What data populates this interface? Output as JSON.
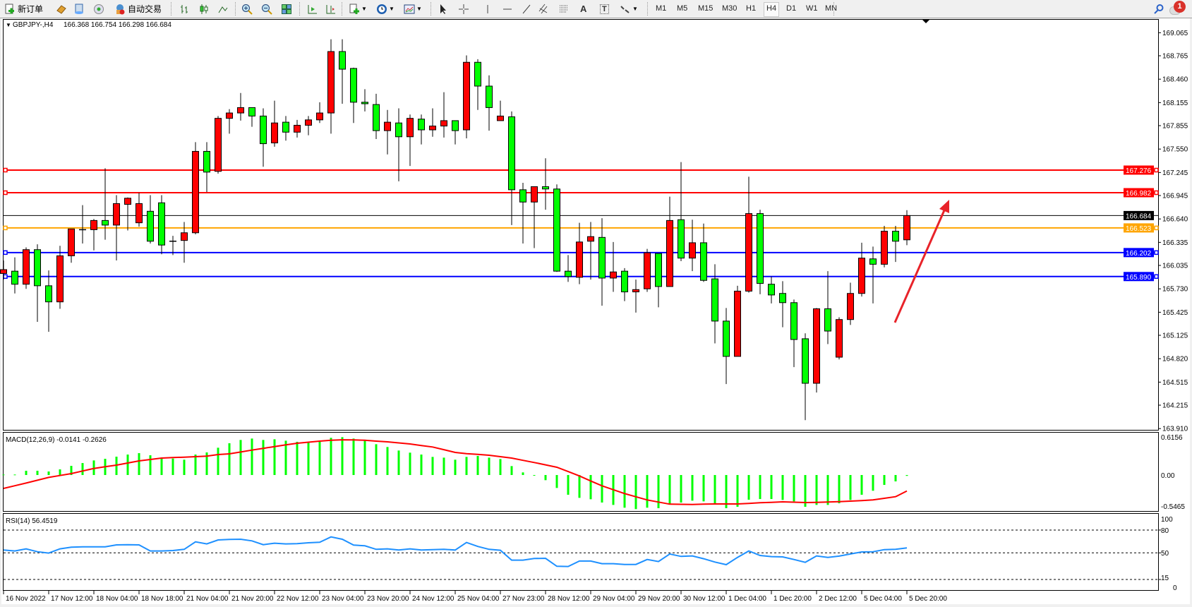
{
  "toolbar": {
    "new_order_label": "新订单",
    "auto_trading_label": "自动交易",
    "text_tool_glyph": "A",
    "label_tool_glyph": "T",
    "timeframes": [
      "M1",
      "M5",
      "M15",
      "M30",
      "H1",
      "H4",
      "D1",
      "W1",
      "MN"
    ],
    "active_timeframe": "H4",
    "notification_count": "1"
  },
  "chart": {
    "symbol": "GBPJPY-,H4",
    "ohlc_text": "166.368 166.754 166.298 166.684",
    "up_color": "#ff0000",
    "down_color": "#00ff00",
    "bid": {
      "value": 166.684,
      "label": "166.684",
      "color": "#000000"
    },
    "levels": [
      {
        "value": 167.276,
        "label": "167.276",
        "color": "#ff0000"
      },
      {
        "value": 166.982,
        "label": "166.982",
        "color": "#ff0000"
      },
      {
        "value": 166.523,
        "label": "166.523",
        "color": "#ffa500"
      },
      {
        "value": 166.202,
        "label": "166.202",
        "color": "#0000ff"
      },
      {
        "value": 165.89,
        "label": "165.890",
        "color": "#0000ff"
      }
    ],
    "price_ticks": [
      "169.065",
      "168.765",
      "168.460",
      "168.155",
      "167.855",
      "167.550",
      "167.245",
      "166.945",
      "166.640",
      "166.335",
      "166.035",
      "165.730",
      "165.425",
      "165.125",
      "164.820",
      "164.515",
      "164.215",
      "163.910"
    ],
    "time_labels": [
      "16 Nov 2022",
      "17 Nov 12:00",
      "18 Nov 04:00",
      "18 Nov 18:00",
      "21 Nov 04:00",
      "21 Nov 20:00",
      "22 Nov 12:00",
      "23 Nov 04:00",
      "23 Nov 20:00",
      "24 Nov 12:00",
      "25 Nov 04:00",
      "27 Nov 23:00",
      "28 Nov 12:00",
      "29 Nov 04:00",
      "29 Nov 20:00",
      "30 Nov 12:00",
      "1 Dec 04:00",
      "1 Dec 20:00",
      "2 Dec 12:00",
      "5 Dec 04:00",
      "5 Dec 20:00"
    ],
    "arrow_color": "#e8232a"
  },
  "macd": {
    "label": "MACD(12,26,9) -0.0141 -0.2626",
    "ticks": [
      "0.6156",
      "0.00",
      "-0.5465"
    ],
    "hist_color": "#00ff00",
    "signal_color": "#ff0000"
  },
  "rsi": {
    "label": "RSI(14) 56.4519",
    "ticks": [
      "100",
      "80",
      "50",
      "15",
      "0"
    ],
    "levels": [
      80,
      50,
      15
    ],
    "color": "#1e90ff"
  },
  "chart_data": {
    "type": "candlestick",
    "ohlc": [
      [
        165.93,
        166.1,
        165.85,
        165.98
      ],
      [
        165.96,
        166.14,
        165.67,
        165.79
      ],
      [
        165.79,
        166.27,
        165.73,
        166.24
      ],
      [
        166.24,
        166.31,
        165.3,
        165.77
      ],
      [
        165.77,
        165.97,
        165.17,
        165.56
      ],
      [
        165.56,
        166.29,
        165.47,
        166.16
      ],
      [
        166.16,
        166.51,
        166.07,
        166.51
      ],
      [
        166.5,
        166.82,
        166.32,
        166.5
      ],
      [
        166.5,
        166.64,
        166.23,
        166.62
      ],
      [
        166.62,
        167.3,
        166.37,
        166.56
      ],
      [
        166.56,
        166.95,
        166.1,
        166.84
      ],
      [
        166.83,
        166.92,
        166.49,
        166.91
      ],
      [
        166.59,
        166.98,
        166.54,
        166.84
      ],
      [
        166.74,
        166.95,
        166.32,
        166.35
      ],
      [
        166.85,
        166.95,
        166.18,
        166.3
      ],
      [
        166.35,
        166.42,
        166.17,
        166.35
      ],
      [
        166.36,
        166.6,
        166.07,
        166.46
      ],
      [
        166.46,
        167.64,
        166.44,
        167.52
      ],
      [
        167.52,
        167.64,
        166.99,
        167.25
      ],
      [
        167.26,
        167.98,
        167.23,
        167.95
      ],
      [
        167.95,
        168.07,
        167.75,
        168.02
      ],
      [
        168.02,
        168.28,
        167.92,
        168.09
      ],
      [
        168.09,
        168.09,
        167.84,
        167.98
      ],
      [
        167.98,
        168.08,
        167.32,
        167.62
      ],
      [
        167.63,
        168.18,
        167.58,
        167.89
      ],
      [
        167.9,
        167.98,
        167.66,
        167.77
      ],
      [
        167.77,
        167.93,
        167.7,
        167.86
      ],
      [
        167.86,
        167.98,
        167.73,
        167.93
      ],
      [
        167.93,
        168.16,
        167.89,
        168.02
      ],
      [
        168.02,
        168.98,
        167.75,
        168.82
      ],
      [
        168.82,
        168.98,
        168.14,
        168.59
      ],
      [
        168.6,
        168.61,
        167.89,
        168.16
      ],
      [
        168.16,
        168.33,
        168.04,
        168.14
      ],
      [
        168.13,
        168.27,
        167.68,
        167.79
      ],
      [
        167.79,
        168.06,
        167.48,
        167.9
      ],
      [
        167.89,
        168.08,
        167.13,
        167.71
      ],
      [
        167.71,
        168.0,
        167.33,
        167.95
      ],
      [
        167.94,
        168.0,
        167.61,
        167.8
      ],
      [
        167.8,
        168.08,
        167.71,
        167.85
      ],
      [
        167.85,
        168.29,
        167.7,
        167.92
      ],
      [
        167.92,
        167.92,
        167.61,
        167.79
      ],
      [
        167.8,
        168.77,
        167.69,
        168.68
      ],
      [
        168.68,
        168.72,
        168.06,
        168.37
      ],
      [
        168.37,
        168.51,
        167.79,
        168.09
      ],
      [
        167.92,
        168.18,
        167.92,
        167.98
      ],
      [
        167.97,
        168.04,
        166.56,
        167.02
      ],
      [
        167.02,
        167.11,
        166.32,
        166.86
      ],
      [
        166.86,
        167.06,
        166.26,
        167.06
      ],
      [
        167.06,
        167.43,
        166.76,
        167.03
      ],
      [
        167.03,
        167.09,
        165.95,
        165.96
      ],
      [
        165.96,
        166.17,
        165.82,
        165.89
      ],
      [
        165.88,
        166.59,
        165.79,
        166.34
      ],
      [
        166.35,
        166.6,
        165.85,
        166.41
      ],
      [
        166.4,
        166.65,
        165.51,
        165.87
      ],
      [
        165.87,
        166.34,
        165.69,
        165.95
      ],
      [
        165.96,
        166.0,
        165.57,
        165.69
      ],
      [
        165.69,
        165.85,
        165.42,
        165.72
      ],
      [
        165.73,
        166.25,
        165.69,
        166.2
      ],
      [
        166.19,
        166.19,
        165.49,
        165.76
      ],
      [
        165.76,
        166.93,
        165.76,
        166.62
      ],
      [
        166.63,
        167.38,
        166.09,
        166.13
      ],
      [
        166.13,
        166.63,
        165.96,
        166.33
      ],
      [
        166.33,
        166.58,
        165.82,
        165.84
      ],
      [
        165.86,
        166.05,
        165.02,
        165.31
      ],
      [
        165.31,
        165.48,
        164.49,
        164.85
      ],
      [
        164.85,
        165.77,
        164.85,
        165.7
      ],
      [
        165.7,
        167.19,
        165.68,
        166.71
      ],
      [
        166.71,
        166.76,
        165.66,
        165.8
      ],
      [
        165.79,
        165.89,
        165.54,
        165.65
      ],
      [
        165.67,
        165.83,
        165.23,
        165.55
      ],
      [
        165.55,
        165.59,
        164.71,
        165.07
      ],
      [
        165.08,
        165.15,
        164.02,
        164.5
      ],
      [
        164.5,
        165.48,
        164.38,
        165.47
      ],
      [
        165.47,
        165.96,
        165.01,
        165.18
      ],
      [
        164.84,
        165.36,
        164.81,
        165.33
      ],
      [
        165.33,
        165.81,
        165.26,
        165.67
      ],
      [
        165.67,
        166.33,
        165.63,
        166.13
      ],
      [
        166.12,
        166.28,
        165.54,
        166.05
      ],
      [
        166.05,
        166.55,
        166.01,
        166.48
      ],
      [
        166.48,
        166.55,
        166.08,
        166.35
      ],
      [
        166.368,
        166.754,
        166.298,
        166.684
      ]
    ],
    "price_range": [
      163.91,
      169.065
    ],
    "macd_hist": [
      0.008,
      0.008,
      0.07,
      0.07,
      0.058,
      0.093,
      0.151,
      0.197,
      0.24,
      0.267,
      0.302,
      0.337,
      0.36,
      0.325,
      0.271,
      0.271,
      0.252,
      0.337,
      0.372,
      0.449,
      0.523,
      0.577,
      0.6,
      0.577,
      0.588,
      0.565,
      0.546,
      0.538,
      0.546,
      0.612,
      0.623,
      0.6,
      0.565,
      0.507,
      0.461,
      0.403,
      0.368,
      0.337,
      0.298,
      0.286,
      0.252,
      0.298,
      0.314,
      0.286,
      0.263,
      0.147,
      0.043,
      -0.004,
      -0.085,
      -0.213,
      -0.325,
      -0.376,
      -0.399,
      -0.453,
      -0.492,
      -0.538,
      -0.561,
      -0.538,
      -0.546,
      -0.472,
      -0.453,
      -0.422,
      -0.434,
      -0.472,
      -0.546,
      -0.523,
      -0.407,
      -0.395,
      -0.395,
      -0.41,
      -0.434,
      -0.523,
      -0.492,
      -0.492,
      -0.465,
      -0.41,
      -0.325,
      -0.259,
      -0.163,
      -0.105,
      -0.0141
    ],
    "macd_signal": [
      -0.221,
      -0.177,
      -0.132,
      -0.086,
      -0.039,
      -0.008,
      0.023,
      0.066,
      0.108,
      0.136,
      0.163,
      0.198,
      0.232,
      0.256,
      0.279,
      0.287,
      0.294,
      0.302,
      0.31,
      0.337,
      0.348,
      0.379,
      0.41,
      0.439,
      0.468,
      0.496,
      0.523,
      0.54,
      0.557,
      0.573,
      0.58,
      0.577,
      0.573,
      0.557,
      0.546,
      0.529,
      0.511,
      0.486,
      0.461,
      0.417,
      0.372,
      0.352,
      0.339,
      0.325,
      0.302,
      0.279,
      0.242,
      0.205,
      0.167,
      0.128,
      0.057,
      -0.015,
      -0.097,
      -0.178,
      -0.242,
      -0.306,
      -0.358,
      -0.41,
      -0.445,
      -0.48,
      -0.482,
      -0.484,
      -0.48,
      -0.476,
      -0.476,
      -0.476,
      -0.467,
      -0.457,
      -0.449,
      -0.441,
      -0.447,
      -0.453,
      -0.449,
      -0.445,
      -0.438,
      -0.43,
      -0.42,
      -0.41,
      -0.383,
      -0.356,
      -0.2626
    ],
    "macd_range": [
      -0.5465,
      0.6156
    ],
    "rsi": [
      53.7,
      52.5,
      55.3,
      51.5,
      49.7,
      55.3,
      57.4,
      58,
      58,
      58,
      60.5,
      60.8,
      60.5,
      52.5,
      52.5,
      53.1,
      54.6,
      64.5,
      61.8,
      67,
      67.6,
      67.9,
      65.8,
      60.8,
      62.7,
      61.8,
      62.1,
      63.3,
      63.9,
      71,
      67.9,
      60.2,
      59.3,
      54.6,
      55.3,
      53.7,
      55.3,
      53.7,
      54.3,
      54.6,
      53.7,
      63.6,
      58.4,
      54.6,
      53.4,
      40.4,
      40.4,
      42.6,
      42.9,
      32.4,
      32.1,
      39.2,
      39.2,
      35.8,
      35.8,
      34.8,
      34.8,
      41.3,
      38.6,
      48.5,
      45.4,
      46,
      42.3,
      37.9,
      34.5,
      44.1,
      52.5,
      46.6,
      45.1,
      44.7,
      41.3,
      37.6,
      46,
      44.1,
      45.7,
      48.5,
      51.2,
      51.5,
      54.3,
      54.6,
      56.45
    ],
    "rsi_range": [
      0,
      100
    ]
  }
}
